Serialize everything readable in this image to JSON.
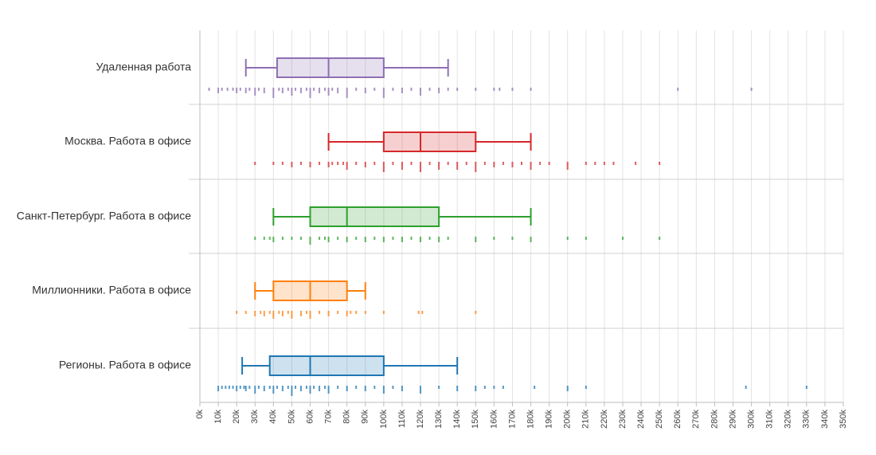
{
  "chart_data": {
    "type": "boxplot",
    "title": "",
    "xlabel": "",
    "ylabel": "",
    "xlim": [
      0,
      350000
    ],
    "x_tick_step": 10000,
    "x_tick_suffix": "k",
    "grid": true,
    "orientation": "horizontal",
    "series": [
      {
        "name": "Удаленная работа",
        "color": "#8e6fb3",
        "whisker_low": 25000,
        "q1": 42000,
        "median": 70000,
        "q3": 100000,
        "whisker_high": 135000,
        "points": [
          {
            "v": 5000,
            "w": 1
          },
          {
            "v": 10000,
            "w": 2
          },
          {
            "v": 12000,
            "w": 1
          },
          {
            "v": 15000,
            "w": 1
          },
          {
            "v": 18000,
            "w": 1
          },
          {
            "v": 20000,
            "w": 2
          },
          {
            "v": 22000,
            "w": 1
          },
          {
            "v": 25000,
            "w": 2
          },
          {
            "v": 27000,
            "w": 1
          },
          {
            "v": 30000,
            "w": 3
          },
          {
            "v": 32000,
            "w": 1
          },
          {
            "v": 35000,
            "w": 2
          },
          {
            "v": 40000,
            "w": 4
          },
          {
            "v": 43000,
            "w": 1
          },
          {
            "v": 45000,
            "w": 2
          },
          {
            "v": 48000,
            "w": 1
          },
          {
            "v": 50000,
            "w": 3
          },
          {
            "v": 52000,
            "w": 1
          },
          {
            "v": 55000,
            "w": 2
          },
          {
            "v": 58000,
            "w": 1
          },
          {
            "v": 60000,
            "w": 4
          },
          {
            "v": 62000,
            "w": 1
          },
          {
            "v": 65000,
            "w": 2
          },
          {
            "v": 68000,
            "w": 1
          },
          {
            "v": 70000,
            "w": 3
          },
          {
            "v": 72000,
            "w": 1
          },
          {
            "v": 75000,
            "w": 2
          },
          {
            "v": 80000,
            "w": 4
          },
          {
            "v": 85000,
            "w": 1
          },
          {
            "v": 90000,
            "w": 2
          },
          {
            "v": 95000,
            "w": 1
          },
          {
            "v": 100000,
            "w": 4
          },
          {
            "v": 105000,
            "w": 1
          },
          {
            "v": 110000,
            "w": 2
          },
          {
            "v": 115000,
            "w": 1
          },
          {
            "v": 120000,
            "w": 3
          },
          {
            "v": 125000,
            "w": 1
          },
          {
            "v": 130000,
            "w": 2
          },
          {
            "v": 135000,
            "w": 1
          },
          {
            "v": 140000,
            "w": 1
          },
          {
            "v": 150000,
            "w": 1
          },
          {
            "v": 160000,
            "w": 1
          },
          {
            "v": 163000,
            "w": 1
          },
          {
            "v": 170000,
            "w": 1
          },
          {
            "v": 180000,
            "w": 1
          },
          {
            "v": 260000,
            "w": 1
          },
          {
            "v": 300000,
            "w": 1
          }
        ]
      },
      {
        "name": "Москва. Работа в офисе",
        "color": "#d62728",
        "whisker_low": 70000,
        "q1": 100000,
        "median": 120000,
        "q3": 150000,
        "whisker_high": 180000,
        "points": [
          {
            "v": 30000,
            "w": 1
          },
          {
            "v": 40000,
            "w": 1
          },
          {
            "v": 45000,
            "w": 1
          },
          {
            "v": 50000,
            "w": 2
          },
          {
            "v": 55000,
            "w": 1
          },
          {
            "v": 60000,
            "w": 2
          },
          {
            "v": 65000,
            "w": 1
          },
          {
            "v": 70000,
            "w": 2
          },
          {
            "v": 72000,
            "w": 1
          },
          {
            "v": 75000,
            "w": 1
          },
          {
            "v": 78000,
            "w": 1
          },
          {
            "v": 80000,
            "w": 3
          },
          {
            "v": 85000,
            "w": 1
          },
          {
            "v": 90000,
            "w": 2
          },
          {
            "v": 95000,
            "w": 1
          },
          {
            "v": 100000,
            "w": 4
          },
          {
            "v": 105000,
            "w": 1
          },
          {
            "v": 110000,
            "w": 3
          },
          {
            "v": 115000,
            "w": 1
          },
          {
            "v": 120000,
            "w": 4
          },
          {
            "v": 125000,
            "w": 1
          },
          {
            "v": 130000,
            "w": 3
          },
          {
            "v": 135000,
            "w": 1
          },
          {
            "v": 140000,
            "w": 3
          },
          {
            "v": 145000,
            "w": 1
          },
          {
            "v": 150000,
            "w": 4
          },
          {
            "v": 155000,
            "w": 1
          },
          {
            "v": 160000,
            "w": 2
          },
          {
            "v": 165000,
            "w": 1
          },
          {
            "v": 170000,
            "w": 2
          },
          {
            "v": 175000,
            "w": 1
          },
          {
            "v": 180000,
            "w": 3
          },
          {
            "v": 185000,
            "w": 1
          },
          {
            "v": 190000,
            "w": 1
          },
          {
            "v": 200000,
            "w": 3
          },
          {
            "v": 210000,
            "w": 1
          },
          {
            "v": 215000,
            "w": 1
          },
          {
            "v": 220000,
            "w": 1
          },
          {
            "v": 225000,
            "w": 1
          },
          {
            "v": 237000,
            "w": 1
          },
          {
            "v": 250000,
            "w": 1
          }
        ]
      },
      {
        "name": "Санкт-Петербург. Работа в офисе",
        "color": "#2ca02c",
        "whisker_low": 40000,
        "q1": 60000,
        "median": 80000,
        "q3": 130000,
        "whisker_high": 180000,
        "points": [
          {
            "v": 30000,
            "w": 1
          },
          {
            "v": 35000,
            "w": 1
          },
          {
            "v": 38000,
            "w": 1
          },
          {
            "v": 40000,
            "w": 2
          },
          {
            "v": 45000,
            "w": 1
          },
          {
            "v": 50000,
            "w": 1
          },
          {
            "v": 55000,
            "w": 1
          },
          {
            "v": 60000,
            "w": 3
          },
          {
            "v": 65000,
            "w": 1
          },
          {
            "v": 68000,
            "w": 1
          },
          {
            "v": 70000,
            "w": 2
          },
          {
            "v": 75000,
            "w": 1
          },
          {
            "v": 80000,
            "w": 2
          },
          {
            "v": 85000,
            "w": 1
          },
          {
            "v": 90000,
            "w": 2
          },
          {
            "v": 95000,
            "w": 1
          },
          {
            "v": 100000,
            "w": 2
          },
          {
            "v": 105000,
            "w": 1
          },
          {
            "v": 110000,
            "w": 2
          },
          {
            "v": 115000,
            "w": 1
          },
          {
            "v": 120000,
            "w": 2
          },
          {
            "v": 125000,
            "w": 1
          },
          {
            "v": 130000,
            "w": 2
          },
          {
            "v": 135000,
            "w": 1
          },
          {
            "v": 150000,
            "w": 2
          },
          {
            "v": 160000,
            "w": 1
          },
          {
            "v": 170000,
            "w": 1
          },
          {
            "v": 180000,
            "w": 2
          },
          {
            "v": 200000,
            "w": 1
          },
          {
            "v": 210000,
            "w": 1
          },
          {
            "v": 230000,
            "w": 1
          },
          {
            "v": 250000,
            "w": 1
          }
        ]
      },
      {
        "name": "Миллионники. Работа в офисе",
        "color": "#ff7f0e",
        "whisker_low": 30000,
        "q1": 40000,
        "median": 60000,
        "q3": 80000,
        "whisker_high": 90000,
        "points": [
          {
            "v": 20000,
            "w": 1
          },
          {
            "v": 25000,
            "w": 1
          },
          {
            "v": 30000,
            "w": 2
          },
          {
            "v": 33000,
            "w": 1
          },
          {
            "v": 35000,
            "w": 2
          },
          {
            "v": 38000,
            "w": 1
          },
          {
            "v": 40000,
            "w": 3
          },
          {
            "v": 43000,
            "w": 1
          },
          {
            "v": 45000,
            "w": 2
          },
          {
            "v": 48000,
            "w": 1
          },
          {
            "v": 50000,
            "w": 3
          },
          {
            "v": 55000,
            "w": 2
          },
          {
            "v": 58000,
            "w": 1
          },
          {
            "v": 60000,
            "w": 3
          },
          {
            "v": 65000,
            "w": 1
          },
          {
            "v": 70000,
            "w": 2
          },
          {
            "v": 75000,
            "w": 1
          },
          {
            "v": 80000,
            "w": 2
          },
          {
            "v": 82000,
            "w": 1
          },
          {
            "v": 85000,
            "w": 1
          },
          {
            "v": 90000,
            "w": 1
          },
          {
            "v": 100000,
            "w": 1
          },
          {
            "v": 119000,
            "w": 1
          },
          {
            "v": 121000,
            "w": 1
          },
          {
            "v": 150000,
            "w": 1
          }
        ]
      },
      {
        "name": "Регионы. Работа в офисе",
        "color": "#1f77b4",
        "whisker_low": 23000,
        "q1": 38000,
        "median": 60000,
        "q3": 100000,
        "whisker_high": 140000,
        "points": [
          {
            "v": 10000,
            "w": 2
          },
          {
            "v": 12000,
            "w": 1
          },
          {
            "v": 14000,
            "w": 1
          },
          {
            "v": 16000,
            "w": 1
          },
          {
            "v": 18000,
            "w": 1
          },
          {
            "v": 20000,
            "w": 2
          },
          {
            "v": 22000,
            "w": 1
          },
          {
            "v": 24000,
            "w": 1
          },
          {
            "v": 25000,
            "w": 2
          },
          {
            "v": 27000,
            "w": 1
          },
          {
            "v": 30000,
            "w": 3
          },
          {
            "v": 32000,
            "w": 1
          },
          {
            "v": 35000,
            "w": 2
          },
          {
            "v": 38000,
            "w": 1
          },
          {
            "v": 40000,
            "w": 3
          },
          {
            "v": 42000,
            "w": 1
          },
          {
            "v": 45000,
            "w": 2
          },
          {
            "v": 48000,
            "w": 1
          },
          {
            "v": 50000,
            "w": 4
          },
          {
            "v": 52000,
            "w": 1
          },
          {
            "v": 55000,
            "w": 2
          },
          {
            "v": 58000,
            "w": 1
          },
          {
            "v": 60000,
            "w": 3
          },
          {
            "v": 62000,
            "w": 1
          },
          {
            "v": 65000,
            "w": 2
          },
          {
            "v": 68000,
            "w": 1
          },
          {
            "v": 70000,
            "w": 3
          },
          {
            "v": 75000,
            "w": 1
          },
          {
            "v": 80000,
            "w": 2
          },
          {
            "v": 85000,
            "w": 1
          },
          {
            "v": 90000,
            "w": 2
          },
          {
            "v": 95000,
            "w": 1
          },
          {
            "v": 100000,
            "w": 3
          },
          {
            "v": 105000,
            "w": 1
          },
          {
            "v": 110000,
            "w": 2
          },
          {
            "v": 120000,
            "w": 3
          },
          {
            "v": 130000,
            "w": 1
          },
          {
            "v": 140000,
            "w": 2
          },
          {
            "v": 150000,
            "w": 2
          },
          {
            "v": 155000,
            "w": 1
          },
          {
            "v": 160000,
            "w": 1
          },
          {
            "v": 165000,
            "w": 1
          },
          {
            "v": 182000,
            "w": 1
          },
          {
            "v": 200000,
            "w": 2
          },
          {
            "v": 210000,
            "w": 1
          },
          {
            "v": 297000,
            "w": 1
          },
          {
            "v": 330000,
            "w": 1
          }
        ]
      }
    ]
  }
}
